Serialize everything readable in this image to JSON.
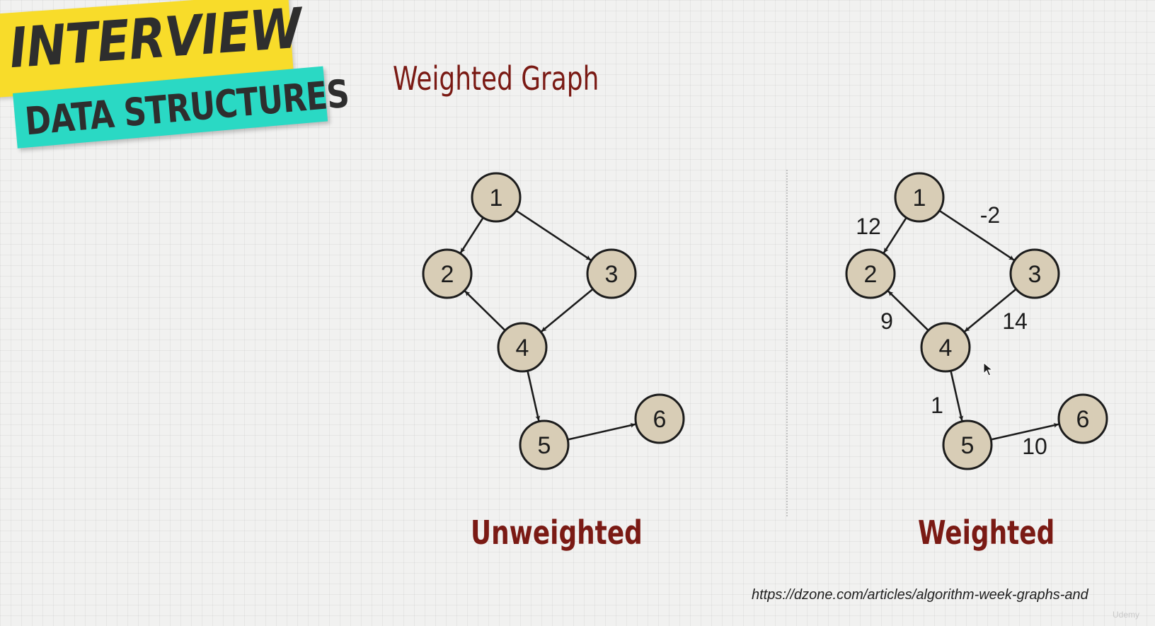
{
  "banner": {
    "line1": "INTERVIEW",
    "line2": "DATA STRUCTURES",
    "colors": {
      "top": "#f8dc2a",
      "bottom": "#2ad9c4"
    }
  },
  "heading": "Weighted Graph",
  "divider": "dotted-vertical-line",
  "graphs": [
    {
      "id": "unweighted",
      "caption": "Unweighted",
      "nodes": [
        "1",
        "2",
        "3",
        "4",
        "5",
        "6"
      ],
      "edges": [
        {
          "from": "1",
          "to": "2"
        },
        {
          "from": "1",
          "to": "3"
        },
        {
          "from": "3",
          "to": "4"
        },
        {
          "from": "4",
          "to": "2"
        },
        {
          "from": "4",
          "to": "5"
        },
        {
          "from": "5",
          "to": "6"
        }
      ]
    },
    {
      "id": "weighted",
      "caption": "Weighted",
      "nodes": [
        "1",
        "2",
        "3",
        "4",
        "5",
        "6"
      ],
      "edges": [
        {
          "from": "1",
          "to": "2",
          "weight": "12"
        },
        {
          "from": "1",
          "to": "3",
          "weight": "-2"
        },
        {
          "from": "3",
          "to": "4",
          "weight": "14"
        },
        {
          "from": "4",
          "to": "2",
          "weight": "9"
        },
        {
          "from": "4",
          "to": "5",
          "weight": "1"
        },
        {
          "from": "5",
          "to": "6",
          "weight": "10"
        }
      ]
    }
  ],
  "node_fill": "#d8cdb6",
  "node_stroke": "#1c1c1c",
  "source_link": "https://dzone.com/articles/algorithm-week-graphs-and",
  "watermark": "Udemy",
  "cursor_icon": "mouse-pointer-icon"
}
